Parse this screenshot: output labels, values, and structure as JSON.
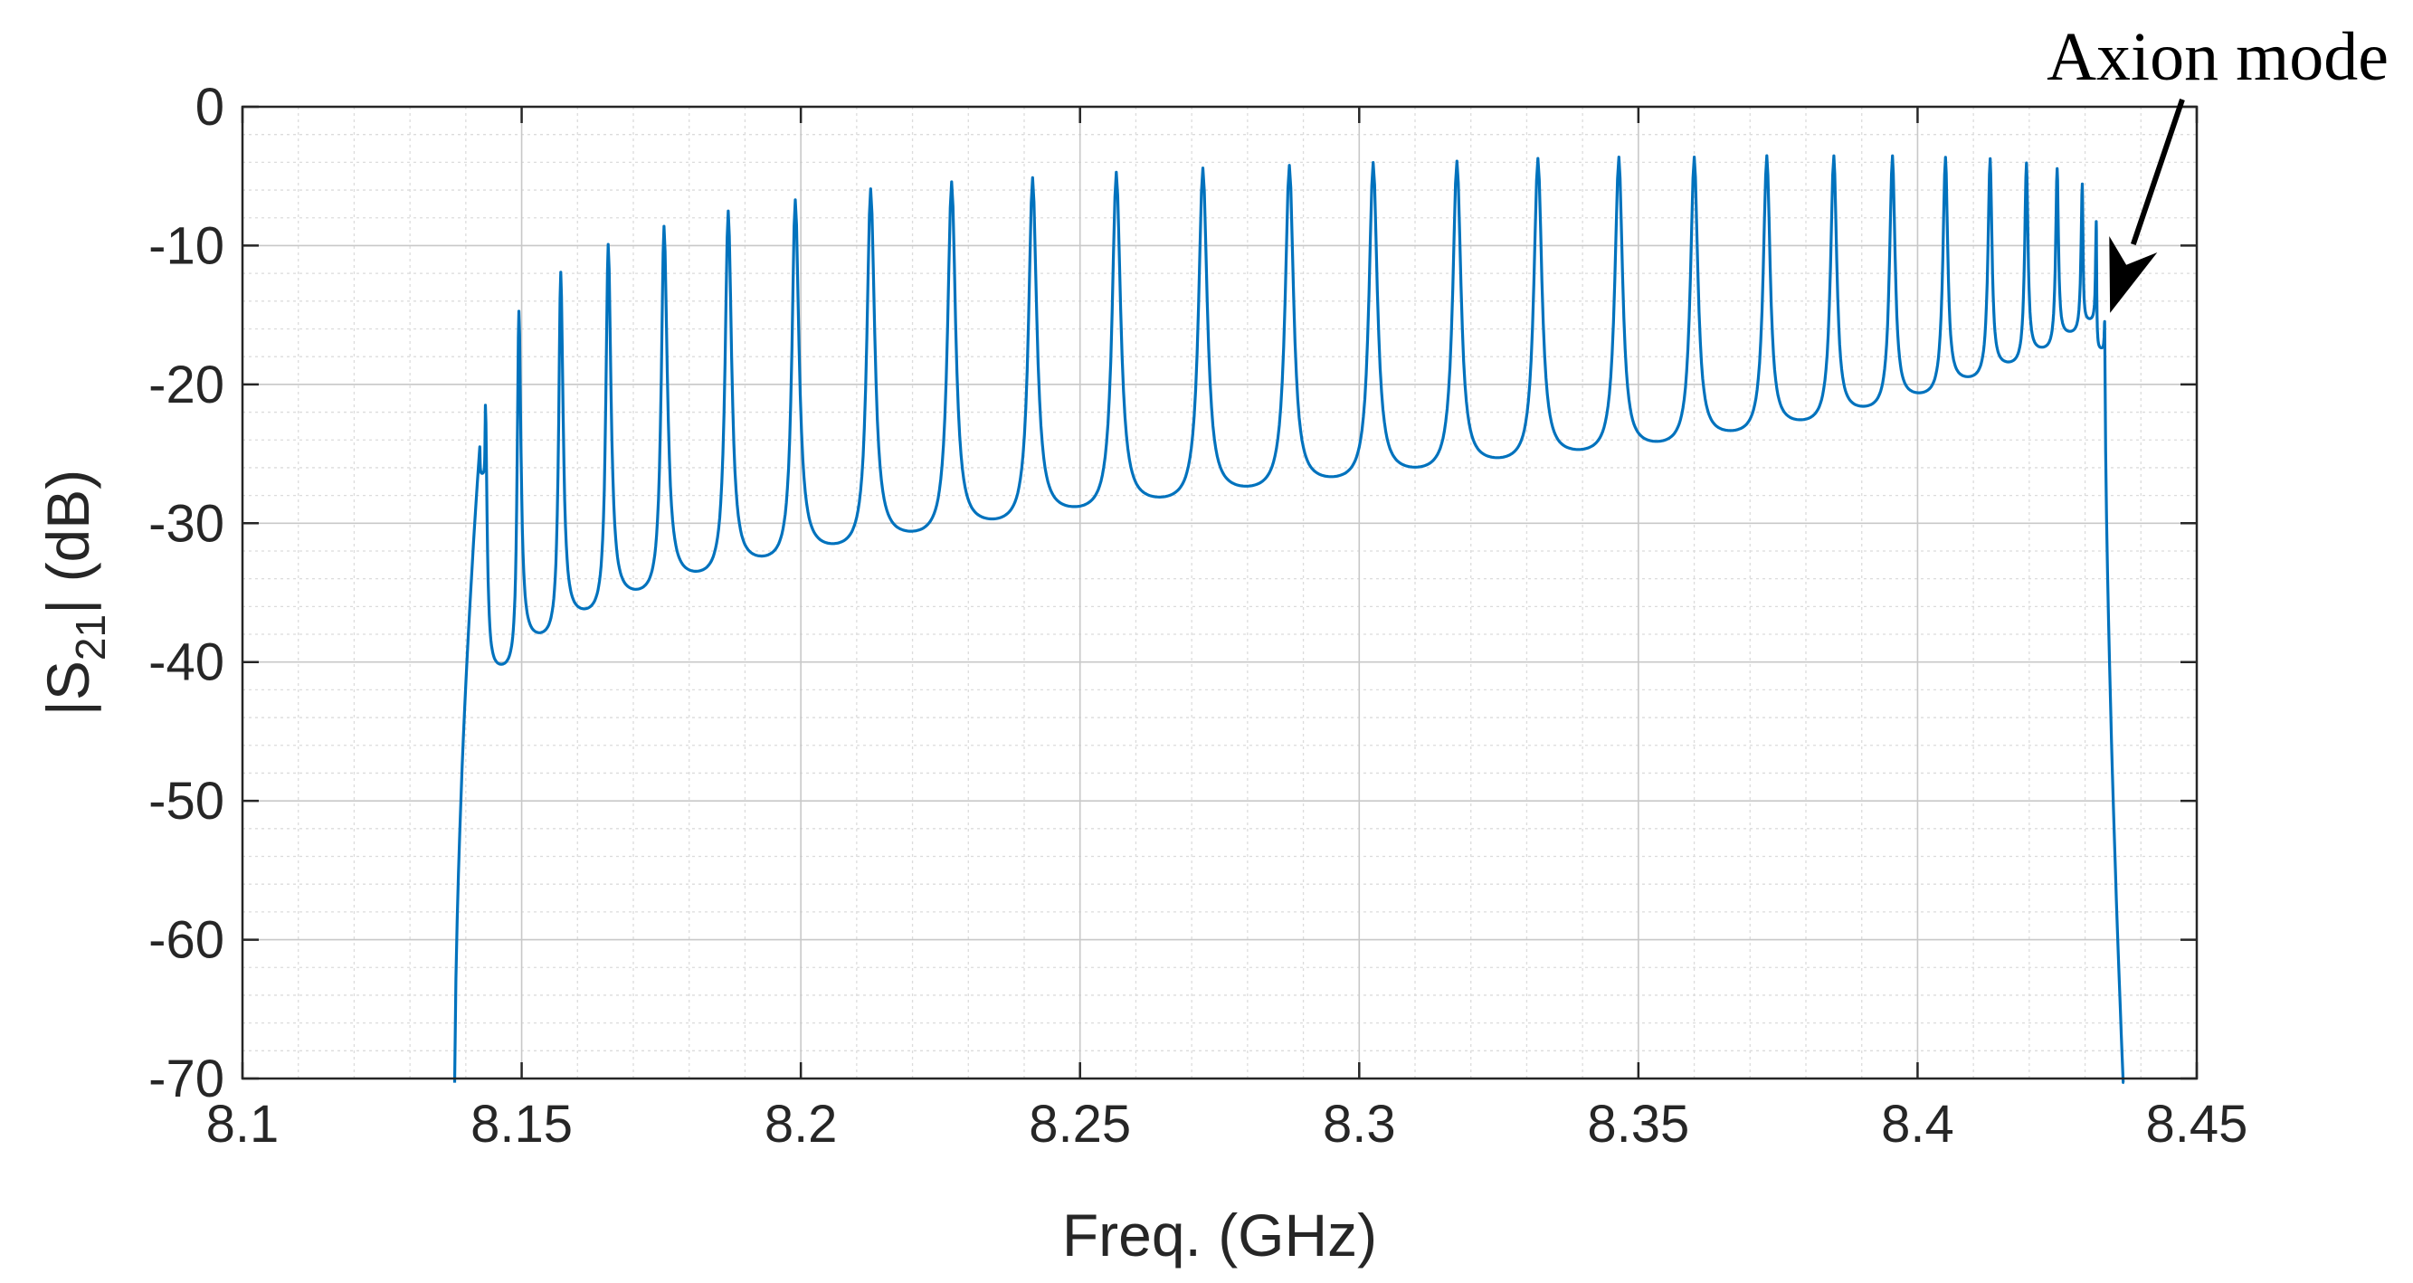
{
  "chart_data": {
    "type": "line",
    "title": "",
    "xlabel": "Freq. (GHz)",
    "ylabel": {
      "main": "|S",
      "sub": "21",
      "rest": "| (dB)"
    },
    "xlim": [
      8.1,
      8.45
    ],
    "ylim": [
      -70,
      0
    ],
    "x_ticks": [
      "8.1",
      "8.15",
      "8.2",
      "8.25",
      "8.3",
      "8.35",
      "8.4",
      "8.45"
    ],
    "y_ticks": [
      "0",
      "-10",
      "-20",
      "-30",
      "-40",
      "-50",
      "-60",
      "-70"
    ],
    "grid": true,
    "minor_grid": true,
    "series": [
      {
        "color": "#0072BD",
        "band_edges": {
          "lower": 8.1405,
          "upper": 8.4345
        },
        "peaks": [
          {
            "x": 8.1425,
            "y": -24.5
          },
          {
            "x": 8.1435,
            "y": -21.5
          },
          {
            "x": 8.1495,
            "y": -14.8
          },
          {
            "x": 8.157,
            "y": -12.0
          },
          {
            "x": 8.1655,
            "y": -10.0
          },
          {
            "x": 8.1755,
            "y": -8.7
          },
          {
            "x": 8.187,
            "y": -7.6
          },
          {
            "x": 8.199,
            "y": -6.8
          },
          {
            "x": 8.2125,
            "y": -6.0
          },
          {
            "x": 8.227,
            "y": -5.5
          },
          {
            "x": 8.2415,
            "y": -5.2
          },
          {
            "x": 8.2565,
            "y": -4.8
          },
          {
            "x": 8.272,
            "y": -4.5
          },
          {
            "x": 8.2875,
            "y": -4.3
          },
          {
            "x": 8.3025,
            "y": -4.1
          },
          {
            "x": 8.3175,
            "y": -4.0
          },
          {
            "x": 8.332,
            "y": -3.8
          },
          {
            "x": 8.3465,
            "y": -3.7
          },
          {
            "x": 8.36,
            "y": -3.7
          },
          {
            "x": 8.373,
            "y": -3.6
          },
          {
            "x": 8.385,
            "y": -3.6
          },
          {
            "x": 8.3955,
            "y": -3.6
          },
          {
            "x": 8.405,
            "y": -3.7
          },
          {
            "x": 8.413,
            "y": -3.8
          },
          {
            "x": 8.4195,
            "y": -4.1
          },
          {
            "x": 8.425,
            "y": -4.5
          },
          {
            "x": 8.4295,
            "y": -5.6
          },
          {
            "x": 8.432,
            "y": -8.3
          },
          {
            "x": 8.4335,
            "y": -15.5
          }
        ],
        "troughs": [
          -26.5,
          -40.8,
          -38.6,
          -36.9,
          -35.5,
          -34.2,
          -33.1,
          -32.2,
          -31.3,
          -30.4,
          -29.5,
          -28.8,
          -28.0,
          -27.3,
          -26.6,
          -25.9,
          -25.3,
          -24.7,
          -23.9,
          -23.1,
          -22.1,
          -21.1,
          -19.9,
          -18.8,
          -17.7,
          -16.5,
          -15.5,
          -17.5
        ]
      }
    ],
    "annotations": [
      {
        "text": "Axion mode",
        "points_to": {
          "x": 8.4335,
          "y": -15.5
        }
      }
    ]
  }
}
